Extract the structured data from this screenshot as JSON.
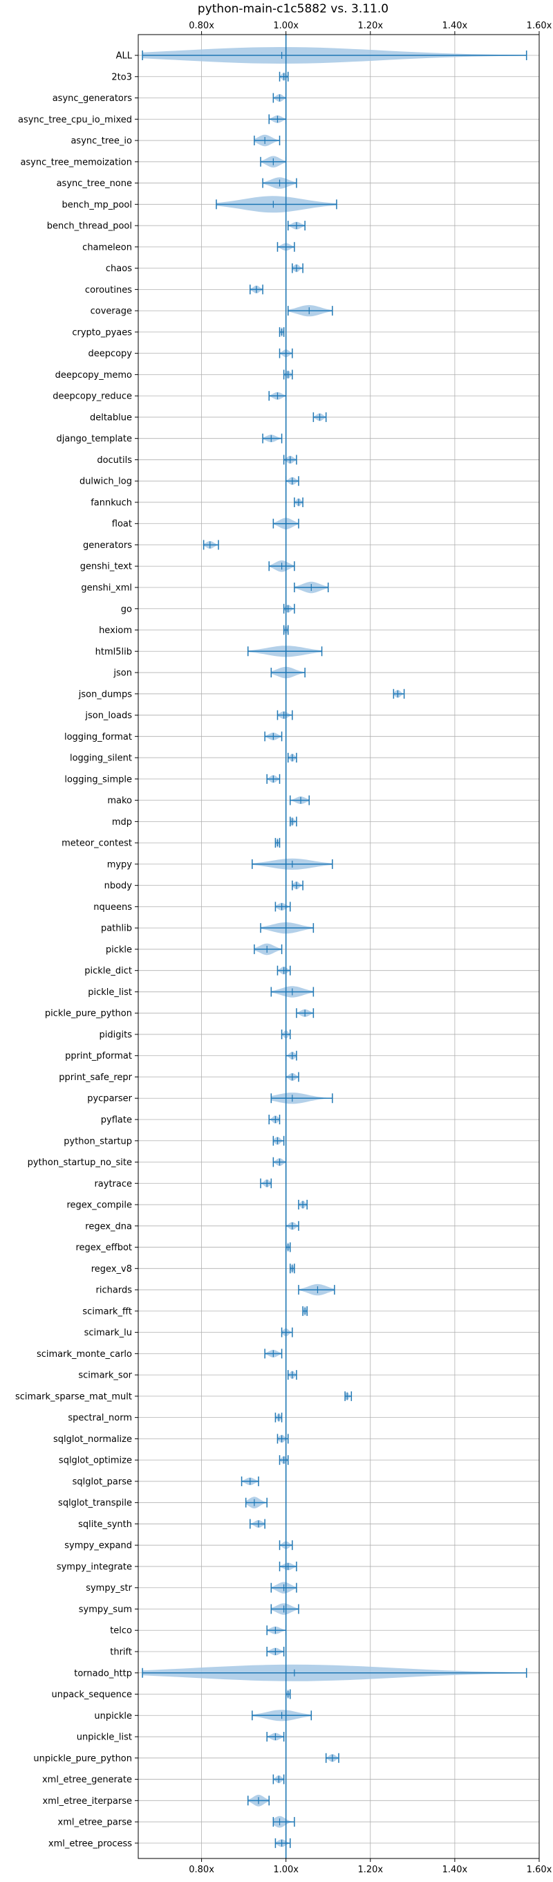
{
  "chart_data": {
    "type": "violin",
    "title": "python-main-c1c5882 vs. 3.11.0",
    "orientation": "horizontal",
    "xlim": [
      0.65,
      1.6
    ],
    "xticks": [
      {
        "value": 0.8,
        "label": "0.80x"
      },
      {
        "value": 1.0,
        "label": "1.00x"
      },
      {
        "value": 1.2,
        "label": "1.20x"
      },
      {
        "value": 1.4,
        "label": "1.40x"
      },
      {
        "value": 1.6,
        "label": "1.60x"
      }
    ],
    "reference_line": 1.0,
    "grid": true,
    "color": "#1f77b4",
    "fill_color": "#a6c8e5",
    "benchmarks": [
      {
        "name": "ALL",
        "min": 0.66,
        "max": 1.57,
        "median": 0.99
      },
      {
        "name": "2to3",
        "min": 0.985,
        "max": 1.005,
        "median": 0.995
      },
      {
        "name": "async_generators",
        "min": 0.97,
        "max": 1.0,
        "median": 0.985
      },
      {
        "name": "async_tree_cpu_io_mixed",
        "min": 0.96,
        "max": 1.0,
        "median": 0.98
      },
      {
        "name": "async_tree_io",
        "min": 0.925,
        "max": 0.985,
        "median": 0.95
      },
      {
        "name": "async_tree_memoization",
        "min": 0.94,
        "max": 1.0,
        "median": 0.97
      },
      {
        "name": "async_tree_none",
        "min": 0.945,
        "max": 1.025,
        "median": 0.985
      },
      {
        "name": "bench_mp_pool",
        "min": 0.835,
        "max": 1.12,
        "median": 0.97
      },
      {
        "name": "bench_thread_pool",
        "min": 1.005,
        "max": 1.045,
        "median": 1.025
      },
      {
        "name": "chameleon",
        "min": 0.98,
        "max": 1.02,
        "median": 1.0
      },
      {
        "name": "chaos",
        "min": 1.015,
        "max": 1.04,
        "median": 1.025
      },
      {
        "name": "coroutines",
        "min": 0.915,
        "max": 0.945,
        "median": 0.93
      },
      {
        "name": "coverage",
        "min": 1.005,
        "max": 1.11,
        "median": 1.055
      },
      {
        "name": "crypto_pyaes",
        "min": 0.985,
        "max": 0.995,
        "median": 0.99
      },
      {
        "name": "deepcopy",
        "min": 0.985,
        "max": 1.015,
        "median": 1.0
      },
      {
        "name": "deepcopy_memo",
        "min": 0.995,
        "max": 1.015,
        "median": 1.005
      },
      {
        "name": "deepcopy_reduce",
        "min": 0.96,
        "max": 1.0,
        "median": 0.98
      },
      {
        "name": "deltablue",
        "min": 1.065,
        "max": 1.095,
        "median": 1.08
      },
      {
        "name": "django_template",
        "min": 0.945,
        "max": 0.99,
        "median": 0.965
      },
      {
        "name": "docutils",
        "min": 0.995,
        "max": 1.025,
        "median": 1.01
      },
      {
        "name": "dulwich_log",
        "min": 1.0,
        "max": 1.03,
        "median": 1.015
      },
      {
        "name": "fannkuch",
        "min": 1.02,
        "max": 1.04,
        "median": 1.03
      },
      {
        "name": "float",
        "min": 0.97,
        "max": 1.03,
        "median": 1.0
      },
      {
        "name": "generators",
        "min": 0.805,
        "max": 0.84,
        "median": 0.82
      },
      {
        "name": "genshi_text",
        "min": 0.96,
        "max": 1.02,
        "median": 0.99
      },
      {
        "name": "genshi_xml",
        "min": 1.02,
        "max": 1.1,
        "median": 1.06
      },
      {
        "name": "go",
        "min": 0.995,
        "max": 1.02,
        "median": 1.005
      },
      {
        "name": "hexiom",
        "min": 0.995,
        "max": 1.005,
        "median": 1.0
      },
      {
        "name": "html5lib",
        "min": 0.91,
        "max": 1.085,
        "median": 1.0
      },
      {
        "name": "json",
        "min": 0.965,
        "max": 1.045,
        "median": 1.0
      },
      {
        "name": "json_dumps",
        "min": 1.255,
        "max": 1.28,
        "median": 1.265
      },
      {
        "name": "json_loads",
        "min": 0.98,
        "max": 1.015,
        "median": 0.995
      },
      {
        "name": "logging_format",
        "min": 0.95,
        "max": 0.99,
        "median": 0.97
      },
      {
        "name": "logging_silent",
        "min": 1.005,
        "max": 1.025,
        "median": 1.015
      },
      {
        "name": "logging_simple",
        "min": 0.955,
        "max": 0.985,
        "median": 0.97
      },
      {
        "name": "mako",
        "min": 1.01,
        "max": 1.055,
        "median": 1.035
      },
      {
        "name": "mdp",
        "min": 1.01,
        "max": 1.025,
        "median": 1.015
      },
      {
        "name": "meteor_contest",
        "min": 0.975,
        "max": 0.985,
        "median": 0.98
      },
      {
        "name": "mypy",
        "min": 0.92,
        "max": 1.11,
        "median": 1.015
      },
      {
        "name": "nbody",
        "min": 1.015,
        "max": 1.04,
        "median": 1.025
      },
      {
        "name": "nqueens",
        "min": 0.975,
        "max": 1.01,
        "median": 0.99
      },
      {
        "name": "pathlib",
        "min": 0.94,
        "max": 1.065,
        "median": 1.0
      },
      {
        "name": "pickle",
        "min": 0.925,
        "max": 0.99,
        "median": 0.955
      },
      {
        "name": "pickle_dict",
        "min": 0.98,
        "max": 1.01,
        "median": 0.995
      },
      {
        "name": "pickle_list",
        "min": 0.965,
        "max": 1.065,
        "median": 1.015
      },
      {
        "name": "pickle_pure_python",
        "min": 1.025,
        "max": 1.065,
        "median": 1.045
      },
      {
        "name": "pidigits",
        "min": 0.99,
        "max": 1.01,
        "median": 1.0
      },
      {
        "name": "pprint_pformat",
        "min": 1.0,
        "max": 1.025,
        "median": 1.015
      },
      {
        "name": "pprint_safe_repr",
        "min": 1.0,
        "max": 1.03,
        "median": 1.015
      },
      {
        "name": "pycparser",
        "min": 0.965,
        "max": 1.11,
        "median": 1.015
      },
      {
        "name": "pyflate",
        "min": 0.96,
        "max": 0.985,
        "median": 0.975
      },
      {
        "name": "python_startup",
        "min": 0.97,
        "max": 0.995,
        "median": 0.98
      },
      {
        "name": "python_startup_no_site",
        "min": 0.97,
        "max": 1.0,
        "median": 0.985
      },
      {
        "name": "raytrace",
        "min": 0.94,
        "max": 0.965,
        "median": 0.955
      },
      {
        "name": "regex_compile",
        "min": 1.03,
        "max": 1.05,
        "median": 1.04
      },
      {
        "name": "regex_dna",
        "min": 1.0,
        "max": 1.03,
        "median": 1.015
      },
      {
        "name": "regex_effbot",
        "min": 1.0,
        "max": 1.01,
        "median": 1.005
      },
      {
        "name": "regex_v8",
        "min": 1.01,
        "max": 1.02,
        "median": 1.015
      },
      {
        "name": "richards",
        "min": 1.03,
        "max": 1.115,
        "median": 1.075
      },
      {
        "name": "scimark_fft",
        "min": 1.04,
        "max": 1.05,
        "median": 1.045
      },
      {
        "name": "scimark_lu",
        "min": 0.99,
        "max": 1.015,
        "median": 1.0
      },
      {
        "name": "scimark_monte_carlo",
        "min": 0.95,
        "max": 0.99,
        "median": 0.97
      },
      {
        "name": "scimark_sor",
        "min": 1.005,
        "max": 1.025,
        "median": 1.015
      },
      {
        "name": "scimark_sparse_mat_mult",
        "min": 1.14,
        "max": 1.155,
        "median": 1.145
      },
      {
        "name": "spectral_norm",
        "min": 0.975,
        "max": 0.99,
        "median": 0.983
      },
      {
        "name": "sqlglot_normalize",
        "min": 0.98,
        "max": 1.005,
        "median": 0.99
      },
      {
        "name": "sqlglot_optimize",
        "min": 0.985,
        "max": 1.005,
        "median": 0.995
      },
      {
        "name": "sqlglot_parse",
        "min": 0.895,
        "max": 0.935,
        "median": 0.915
      },
      {
        "name": "sqlglot_transpile",
        "min": 0.905,
        "max": 0.955,
        "median": 0.925
      },
      {
        "name": "sqlite_synth",
        "min": 0.915,
        "max": 0.95,
        "median": 0.935
      },
      {
        "name": "sympy_expand",
        "min": 0.985,
        "max": 1.015,
        "median": 1.0
      },
      {
        "name": "sympy_integrate",
        "min": 0.985,
        "max": 1.025,
        "median": 1.005
      },
      {
        "name": "sympy_str",
        "min": 0.965,
        "max": 1.025,
        "median": 0.995
      },
      {
        "name": "sympy_sum",
        "min": 0.965,
        "max": 1.03,
        "median": 0.995
      },
      {
        "name": "telco",
        "min": 0.955,
        "max": 1.0,
        "median": 0.975
      },
      {
        "name": "thrift",
        "min": 0.955,
        "max": 0.995,
        "median": 0.975
      },
      {
        "name": "tornado_http",
        "min": 0.66,
        "max": 1.57,
        "median": 1.02
      },
      {
        "name": "unpack_sequence",
        "min": 1.0,
        "max": 1.01,
        "median": 1.005
      },
      {
        "name": "unpickle",
        "min": 0.92,
        "max": 1.06,
        "median": 0.99
      },
      {
        "name": "unpickle_list",
        "min": 0.955,
        "max": 0.995,
        "median": 0.975
      },
      {
        "name": "unpickle_pure_python",
        "min": 1.095,
        "max": 1.125,
        "median": 1.11
      },
      {
        "name": "xml_etree_generate",
        "min": 0.97,
        "max": 0.995,
        "median": 0.983
      },
      {
        "name": "xml_etree_iterparse",
        "min": 0.91,
        "max": 0.96,
        "median": 0.935
      },
      {
        "name": "xml_etree_parse",
        "min": 0.97,
        "max": 1.02,
        "median": 0.985
      },
      {
        "name": "xml_etree_process",
        "min": 0.975,
        "max": 1.01,
        "median": 0.99
      }
    ]
  }
}
